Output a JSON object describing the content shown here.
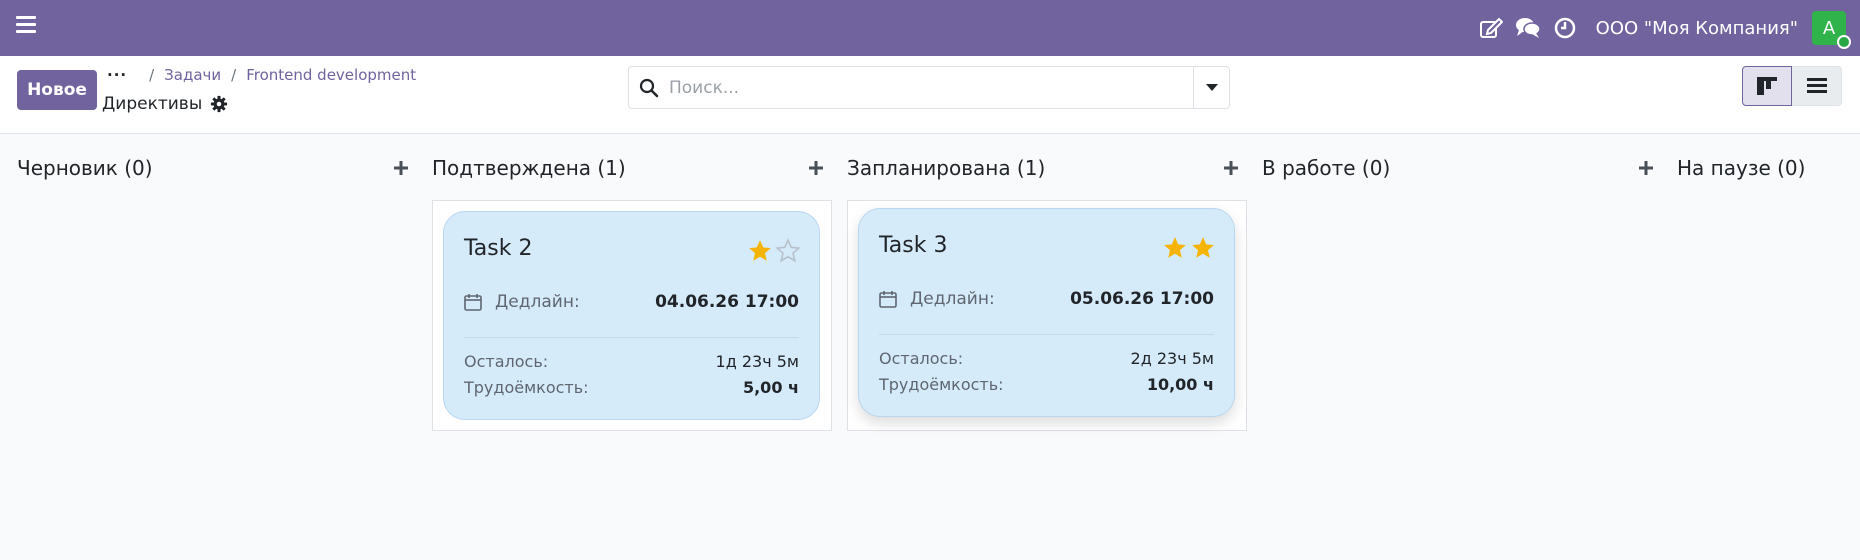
{
  "navbar": {
    "company": "ООО \"Моя Компания\"",
    "avatar_letter": "A",
    "icons": [
      "edit-icon",
      "chat-icon",
      "clock-icon"
    ],
    "bg_color": "#71639e"
  },
  "control": {
    "new_button": "Новое",
    "breadcrumb": {
      "dots": "···",
      "items": [
        "Задачи",
        "Frontend development"
      ]
    },
    "subtitle": "Директивы",
    "search_placeholder": "Поиск..."
  },
  "columns": [
    {
      "title": "Черновик (0)"
    },
    {
      "title": "Подтверждена (1)"
    },
    {
      "title": "Запланирована (1)"
    },
    {
      "title": "В работе (0)"
    },
    {
      "title": "На паузе (0)"
    }
  ],
  "cards": [
    {
      "title": "Task 2",
      "stars_filled": 1,
      "stars_total": 2,
      "deadline_label": "Дедлайн:",
      "deadline": "04.06.26 17:00",
      "remaining_label": "Осталось:",
      "remaining": "1д 23ч 5м",
      "effort_label": "Трудоёмкость:",
      "effort": "5,00 ч"
    },
    {
      "title": "Task 3",
      "stars_filled": 2,
      "stars_total": 2,
      "deadline_label": "Дедлайн:",
      "deadline": "05.06.26 17:00",
      "remaining_label": "Осталось:",
      "remaining": "2д 23ч 5м",
      "effort_label": "Трудоёмкость:",
      "effort": "10,00 ч"
    }
  ],
  "colors": {
    "accent": "#71639e",
    "card_bg": "#d6ebfa",
    "star": "#f5b400"
  }
}
